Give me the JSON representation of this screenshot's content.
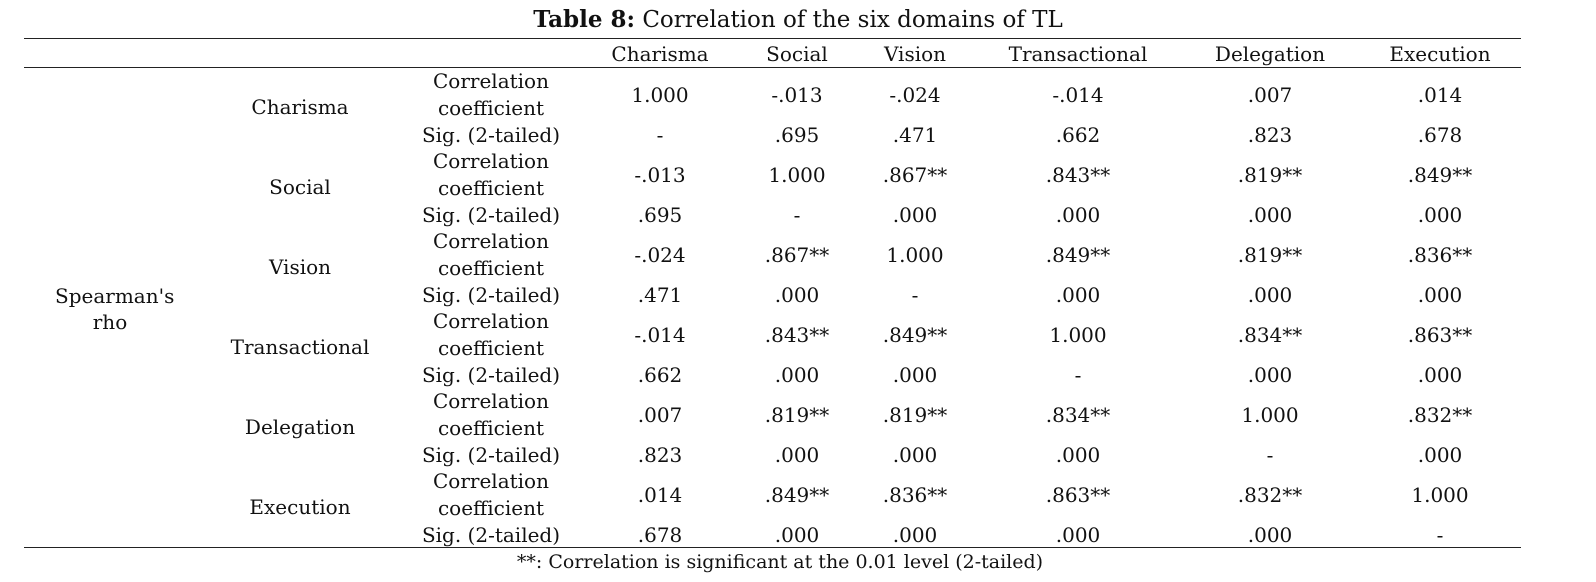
{
  "caption": {
    "label": "Table 8:",
    "text": " Correlation of the six domains of TL"
  },
  "table": {
    "row_group_label": "Spearman's rho",
    "columns": [
      "Charisma",
      "Social",
      "Vision",
      "Transactional",
      "Delegation",
      "Execution"
    ],
    "stat_labels": {
      "corr_line1": "Correlation",
      "corr_line2": "coefficient",
      "sig": "Sig. (2-tailed)"
    },
    "rows": [
      {
        "name": "Charisma",
        "corr": [
          "1.000",
          "-.013",
          "-.024",
          "-.014",
          ".007",
          ".014"
        ],
        "sig": [
          "-",
          ".695",
          ".471",
          ".662",
          ".823",
          ".678"
        ]
      },
      {
        "name": "Social",
        "corr": [
          "-.013",
          "1.000",
          ".867**",
          ".843**",
          ".819**",
          ".849**"
        ],
        "sig": [
          ".695",
          "-",
          ".000",
          ".000",
          ".000",
          ".000"
        ]
      },
      {
        "name": "Vision",
        "corr": [
          "-.024",
          ".867**",
          "1.000",
          ".849**",
          ".819**",
          ".836**"
        ],
        "sig": [
          ".471",
          ".000",
          "-",
          ".000",
          ".000",
          ".000"
        ]
      },
      {
        "name": "Transactional",
        "corr": [
          "-.014",
          ".843**",
          ".849**",
          "1.000",
          ".834**",
          ".863**"
        ],
        "sig": [
          ".662",
          ".000",
          ".000",
          "-",
          ".000",
          ".000"
        ]
      },
      {
        "name": "Delegation",
        "corr": [
          ".007",
          ".819**",
          ".819**",
          ".834**",
          "1.000",
          ".832**"
        ],
        "sig": [
          ".823",
          ".000",
          ".000",
          ".000",
          "-",
          ".000"
        ]
      },
      {
        "name": "Execution",
        "corr": [
          ".014",
          ".849**",
          ".836**",
          ".863**",
          ".832**",
          "1.000"
        ],
        "sig": [
          ".678",
          ".000",
          ".000",
          ".000",
          ".000",
          "-"
        ]
      }
    ]
  },
  "footnote": "**: Correlation is significant at the 0.01 level (2-tailed)"
}
